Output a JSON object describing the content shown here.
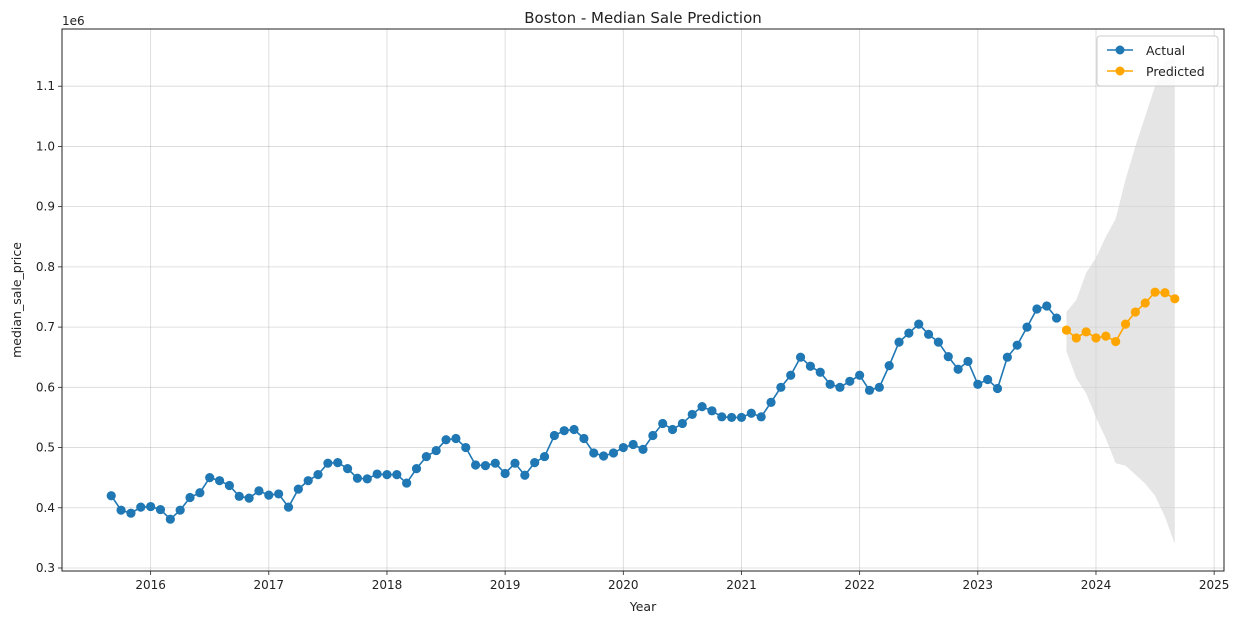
{
  "chart_data": {
    "type": "line",
    "title": "Boston - Median Sale Prediction",
    "xlabel": "Year",
    "ylabel": "median_sale_price",
    "y_offset_text": "1e6",
    "xlim": [
      "2015-04-01",
      "2025-02-01"
    ],
    "ylim": [
      0.295,
      1.195
    ],
    "y_scale_factor": 1000000,
    "grid": true,
    "legend_position": "top-right",
    "x_ticks": [
      "2016",
      "2017",
      "2018",
      "2019",
      "2020",
      "2021",
      "2022",
      "2023",
      "2024",
      "2025"
    ],
    "y_ticks": [
      "0.3",
      "0.4",
      "0.5",
      "0.6",
      "0.7",
      "0.8",
      "0.9",
      "1.0",
      "1.1"
    ],
    "colors": {
      "actual": "#1f77b4",
      "predicted": "#ffa500",
      "band": "#d3d3d3"
    },
    "series": [
      {
        "name": "Actual",
        "start": "2015-09",
        "values": [
          0.42,
          0.396,
          0.391,
          0.401,
          0.402,
          0.397,
          0.381,
          0.396,
          0.417,
          0.425,
          0.45,
          0.445,
          0.437,
          0.419,
          0.416,
          0.428,
          0.421,
          0.423,
          0.401,
          0.431,
          0.445,
          0.455,
          0.474,
          0.475,
          0.465,
          0.449,
          0.448,
          0.456,
          0.455,
          0.455,
          0.441,
          0.465,
          0.485,
          0.495,
          0.513,
          0.515,
          0.5,
          0.471,
          0.47,
          0.474,
          0.457,
          0.474,
          0.454,
          0.475,
          0.485,
          0.52,
          0.528,
          0.53,
          0.515,
          0.491,
          0.486,
          0.491,
          0.5,
          0.505,
          0.497,
          0.52,
          0.54,
          0.53,
          0.54,
          0.555,
          0.568,
          0.561,
          0.551,
          0.55,
          0.55,
          0.557,
          0.551,
          0.575,
          0.6,
          0.62,
          0.65,
          0.635,
          0.625,
          0.605,
          0.6,
          0.61,
          0.62,
          0.595,
          0.6,
          0.636,
          0.675,
          0.69,
          0.705,
          0.688,
          0.675,
          0.651,
          0.63,
          0.643,
          0.605,
          0.613,
          0.598,
          0.65,
          0.67,
          0.7,
          0.73,
          0.735,
          0.715
        ]
      },
      {
        "name": "Predicted",
        "start": "2023-10",
        "values": [
          0.695,
          0.682,
          0.692,
          0.682,
          0.685,
          0.676,
          0.705,
          0.725,
          0.74,
          0.758,
          0.757,
          0.747
        ],
        "lower": [
          0.66,
          0.615,
          0.59,
          0.55,
          0.515,
          0.474,
          0.47,
          0.455,
          0.44,
          0.42,
          0.385,
          0.34
        ],
        "upper": [
          0.725,
          0.745,
          0.79,
          0.815,
          0.85,
          0.88,
          0.945,
          1.0,
          1.05,
          1.1,
          1.14,
          1.15
        ]
      }
    ]
  }
}
